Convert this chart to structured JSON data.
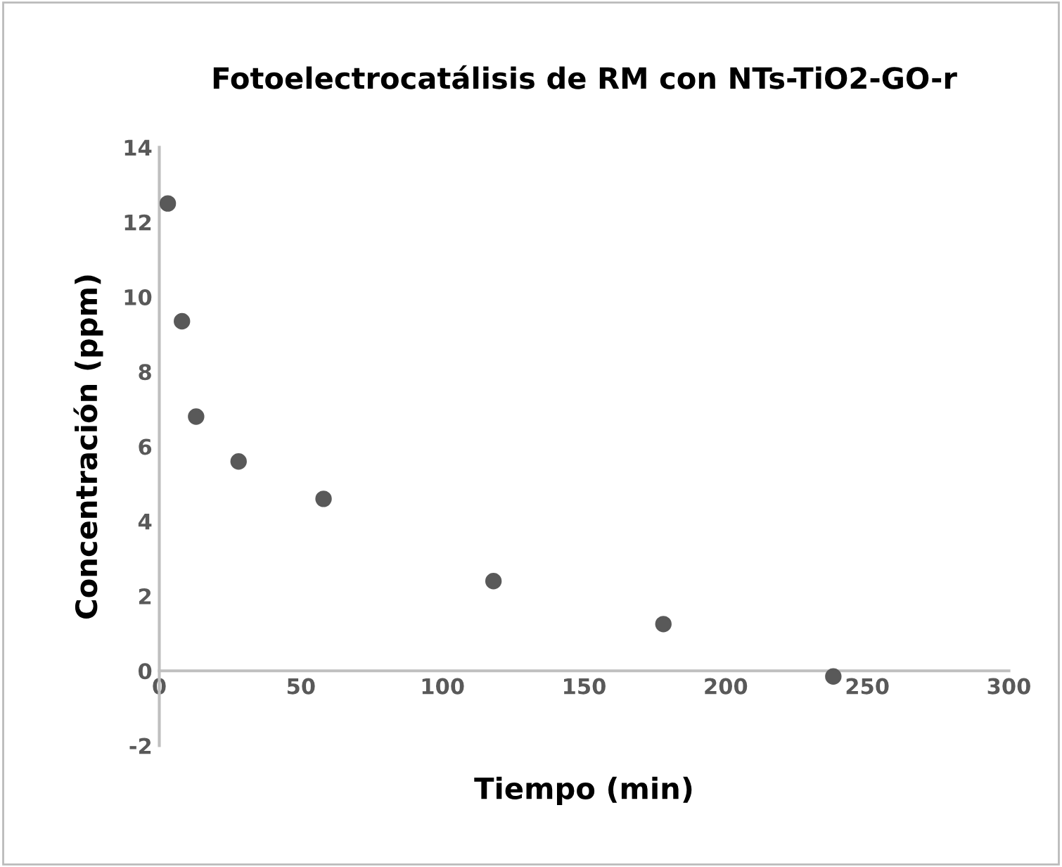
{
  "chart_data": {
    "type": "scatter",
    "title": "Fotoelectrocatálisis de RM con NTs-TiO2-GO-r",
    "xlabel": "Tiempo (min)",
    "ylabel": "Concentración (ppm)",
    "x": [
      3,
      8,
      13,
      28,
      58,
      118,
      178,
      238
    ],
    "series": [
      {
        "color": "#595959",
        "values": [
          12.5,
          9.35,
          6.8,
          5.6,
          4.6,
          2.4,
          1.25,
          -0.15
        ]
      }
    ],
    "xlim": [
      0,
      300
    ],
    "xticks": [
      0,
      50,
      100,
      150,
      200,
      250,
      300
    ],
    "ylim": [
      -2,
      14
    ],
    "yticks": [
      -2,
      0,
      2,
      4,
      6,
      8,
      10,
      12,
      14
    ],
    "marker": "circle",
    "grid": false
  }
}
